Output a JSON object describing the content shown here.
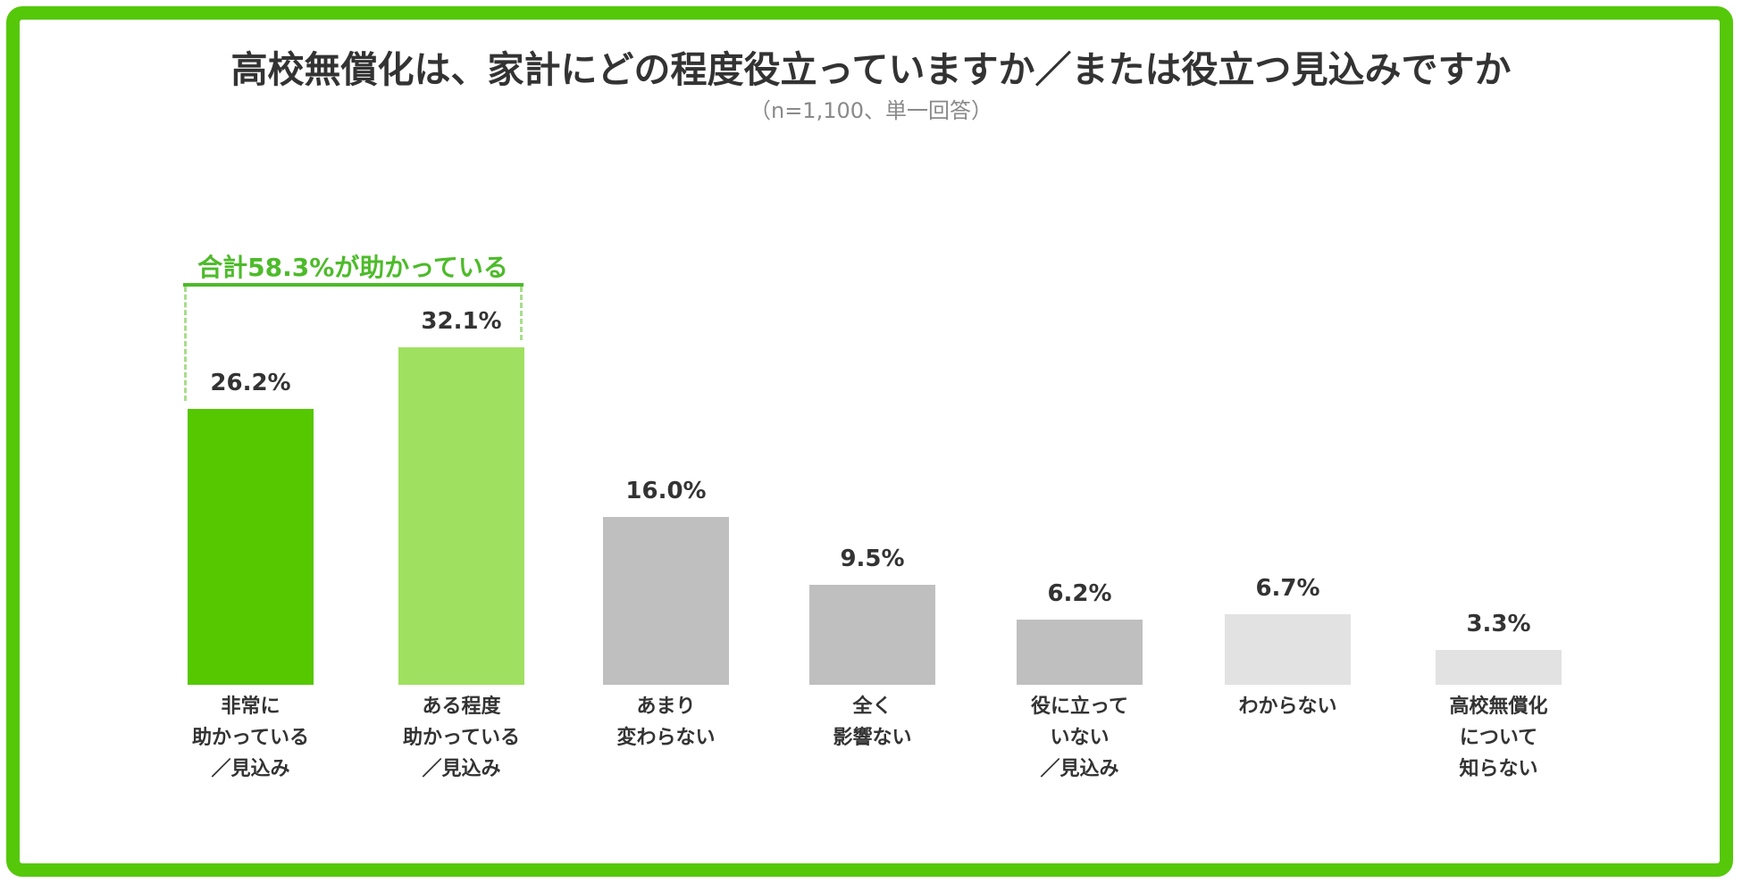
{
  "header": {
    "title": "高校無償化は、家計にどの程度役立っていますか／または役立つ見込みですか",
    "subtitle": "（n=1,100、単一回答）"
  },
  "annotation": {
    "text": "合計58.3%が助かっている",
    "spans_categories": [
      0,
      1
    ],
    "color": "#4dbb2a"
  },
  "colors": {
    "frame": "#55c80a",
    "bar_dark_green": "#55c800",
    "bar_light_green": "#a0e060",
    "bar_gray": "#bfbfbf",
    "bar_light_gray": "#e2e2e2",
    "text": "#333333",
    "subtitle": "#8a8a8a"
  },
  "chart_data": {
    "type": "bar",
    "title": "高校無償化は、家計にどの程度役立っていますか／または役立つ見込みですか",
    "subtitle": "（n=1,100、単一回答）",
    "xlabel": "",
    "ylabel": "",
    "ylim": [
      0,
      35
    ],
    "grid": false,
    "legend": null,
    "unit": "%",
    "categories": [
      "非常に助かっている／見込み",
      "ある程度助かっている／見込み",
      "あまり変わらない",
      "全く影響ない",
      "役に立っていない／見込み",
      "わからない",
      "高校無償化について知らない"
    ],
    "values": [
      26.2,
      32.1,
      16.0,
      9.5,
      6.2,
      6.7,
      3.3
    ],
    "value_labels": [
      "26.2%",
      "32.1%",
      "16.0%",
      "9.5%",
      "6.2%",
      "6.7%",
      "3.3%"
    ],
    "category_lines": [
      [
        "非常に",
        "助かっている",
        "／見込み"
      ],
      [
        "ある程度",
        "助かっている",
        "／見込み"
      ],
      [
        "あまり",
        "変わらない"
      ],
      [
        "全く",
        "影響ない"
      ],
      [
        "役に立って",
        "いない",
        "／見込み"
      ],
      [
        "わからない"
      ],
      [
        "高校無償化",
        "について",
        "知らない"
      ]
    ],
    "bar_colors": [
      "#55c800",
      "#a0e060",
      "#bfbfbf",
      "#bfbfbf",
      "#bfbfbf",
      "#e2e2e2",
      "#e2e2e2"
    ],
    "annotations": [
      {
        "text": "合計58.3%が助かっている",
        "covers": [
          "非常に助かっている／見込み",
          "ある程度助かっている／見込み"
        ],
        "sum": 58.3
      }
    ]
  }
}
